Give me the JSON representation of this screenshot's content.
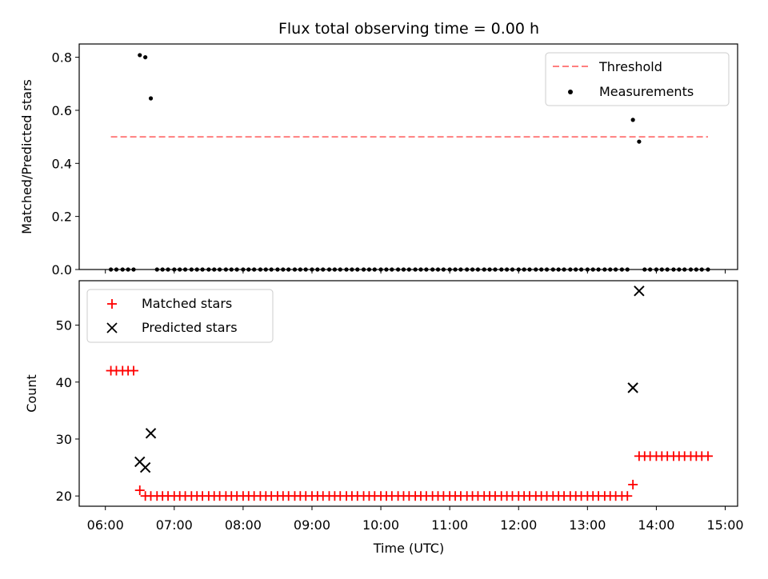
{
  "chart_data": {
    "title": "Flux total observing time = 0.00 h",
    "xlabel": "Time (UTC)",
    "x_ticks": [
      "06:00",
      "07:00",
      "08:00",
      "09:00",
      "10:00",
      "11:00",
      "12:00",
      "13:00",
      "14:00",
      "15:00"
    ],
    "xlim_hours": [
      5.62,
      15.18
    ],
    "panels": [
      {
        "type": "scatter",
        "ylabel": "Matched/Predicted stars",
        "ylim": [
          0,
          0.85
        ],
        "y_ticks": [
          "0.0",
          "0.2",
          "0.4",
          "0.6",
          "0.8"
        ],
        "legend_position": "top-right",
        "threshold": {
          "name": "Threshold",
          "value": 0.5,
          "color": "#ff7f7f",
          "x_range": [
            6.08,
            14.75
          ]
        },
        "measurements": {
          "name": "Measurements",
          "color": "#000000",
          "x": [
            6.08,
            6.16,
            6.25,
            6.33,
            6.41,
            6.5,
            6.58,
            6.66,
            6.75,
            6.83,
            6.91,
            7.0,
            7.08,
            7.16,
            7.25,
            7.33,
            7.41,
            7.5,
            7.58,
            7.66,
            7.75,
            7.83,
            7.91,
            8.0,
            8.08,
            8.16,
            8.25,
            8.33,
            8.41,
            8.5,
            8.58,
            8.66,
            8.75,
            8.83,
            8.91,
            9.0,
            9.08,
            9.16,
            9.25,
            9.33,
            9.41,
            9.5,
            9.58,
            9.66,
            9.75,
            9.83,
            9.91,
            10.0,
            10.08,
            10.16,
            10.25,
            10.33,
            10.41,
            10.5,
            10.58,
            10.66,
            10.75,
            10.83,
            10.91,
            11.0,
            11.08,
            11.16,
            11.25,
            11.33,
            11.41,
            11.5,
            11.58,
            11.66,
            11.75,
            11.83,
            11.91,
            12.0,
            12.08,
            12.16,
            12.25,
            12.33,
            12.41,
            12.5,
            12.58,
            12.66,
            12.75,
            12.83,
            12.91,
            13.0,
            13.08,
            13.16,
            13.25,
            13.33,
            13.41,
            13.5,
            13.58,
            13.66,
            13.75,
            13.83,
            13.91,
            14.0,
            14.08,
            14.16,
            14.25,
            14.33,
            14.41,
            14.5,
            14.58,
            14.66,
            14.75
          ],
          "y": [
            0,
            0,
            0,
            0,
            0,
            0.808,
            0.8,
            0.645,
            0,
            0,
            0,
            0,
            0,
            0,
            0,
            0,
            0,
            0,
            0,
            0,
            0,
            0,
            0,
            0,
            0,
            0,
            0,
            0,
            0,
            0,
            0,
            0,
            0,
            0,
            0,
            0,
            0,
            0,
            0,
            0,
            0,
            0,
            0,
            0,
            0,
            0,
            0,
            0,
            0,
            0,
            0,
            0,
            0,
            0,
            0,
            0,
            0,
            0,
            0,
            0,
            0,
            0,
            0,
            0,
            0,
            0,
            0,
            0,
            0,
            0,
            0,
            0,
            0,
            0,
            0,
            0,
            0,
            0,
            0,
            0,
            0,
            0,
            0,
            0,
            0,
            0,
            0,
            0,
            0,
            0,
            0,
            0.564,
            0.482,
            0,
            0,
            0,
            0,
            0,
            0,
            0,
            0,
            0,
            0,
            0,
            0
          ]
        }
      },
      {
        "type": "scatter",
        "ylabel": "Count",
        "ylim": [
          18.2,
          57.8
        ],
        "y_ticks": [
          "20",
          "30",
          "40",
          "50"
        ],
        "legend_position": "top-left",
        "series": [
          {
            "name": "Matched stars",
            "marker": "+",
            "color": "#ff0000",
            "x": [
              6.08,
              6.16,
              6.25,
              6.33,
              6.41,
              6.5,
              6.58,
              6.66,
              6.75,
              6.83,
              6.91,
              7.0,
              7.08,
              7.16,
              7.25,
              7.33,
              7.41,
              7.5,
              7.58,
              7.66,
              7.75,
              7.83,
              7.91,
              8.0,
              8.08,
              8.16,
              8.25,
              8.33,
              8.41,
              8.5,
              8.58,
              8.66,
              8.75,
              8.83,
              8.91,
              9.0,
              9.08,
              9.16,
              9.25,
              9.33,
              9.41,
              9.5,
              9.58,
              9.66,
              9.75,
              9.83,
              9.91,
              10.0,
              10.08,
              10.16,
              10.25,
              10.33,
              10.41,
              10.5,
              10.58,
              10.66,
              10.75,
              10.83,
              10.91,
              11.0,
              11.08,
              11.16,
              11.25,
              11.33,
              11.41,
              11.5,
              11.58,
              11.66,
              11.75,
              11.83,
              11.91,
              12.0,
              12.08,
              12.16,
              12.25,
              12.33,
              12.41,
              12.5,
              12.58,
              12.66,
              12.75,
              12.83,
              12.91,
              13.0,
              13.08,
              13.16,
              13.25,
              13.33,
              13.41,
              13.5,
              13.58,
              13.66,
              13.75,
              13.83,
              13.91,
              14.0,
              14.08,
              14.16,
              14.25,
              14.33,
              14.41,
              14.5,
              14.58,
              14.66,
              14.75
            ],
            "y": [
              42,
              42,
              42,
              42,
              42,
              21,
              20,
              20,
              20,
              20,
              20,
              20,
              20,
              20,
              20,
              20,
              20,
              20,
              20,
              20,
              20,
              20,
              20,
              20,
              20,
              20,
              20,
              20,
              20,
              20,
              20,
              20,
              20,
              20,
              20,
              20,
              20,
              20,
              20,
              20,
              20,
              20,
              20,
              20,
              20,
              20,
              20,
              20,
              20,
              20,
              20,
              20,
              20,
              20,
              20,
              20,
              20,
              20,
              20,
              20,
              20,
              20,
              20,
              20,
              20,
              20,
              20,
              20,
              20,
              20,
              20,
              20,
              20,
              20,
              20,
              20,
              20,
              20,
              20,
              20,
              20,
              20,
              20,
              20,
              20,
              20,
              20,
              20,
              20,
              20,
              20,
              22,
              27,
              27,
              27,
              27,
              27,
              27,
              27,
              27,
              27,
              27,
              27,
              27,
              27
            ]
          },
          {
            "name": "Predicted stars",
            "marker": "x",
            "color": "#000000",
            "x": [
              6.5,
              6.58,
              6.66,
              13.66,
              13.75
            ],
            "y": [
              26,
              25,
              31,
              39,
              56
            ]
          }
        ]
      }
    ]
  }
}
